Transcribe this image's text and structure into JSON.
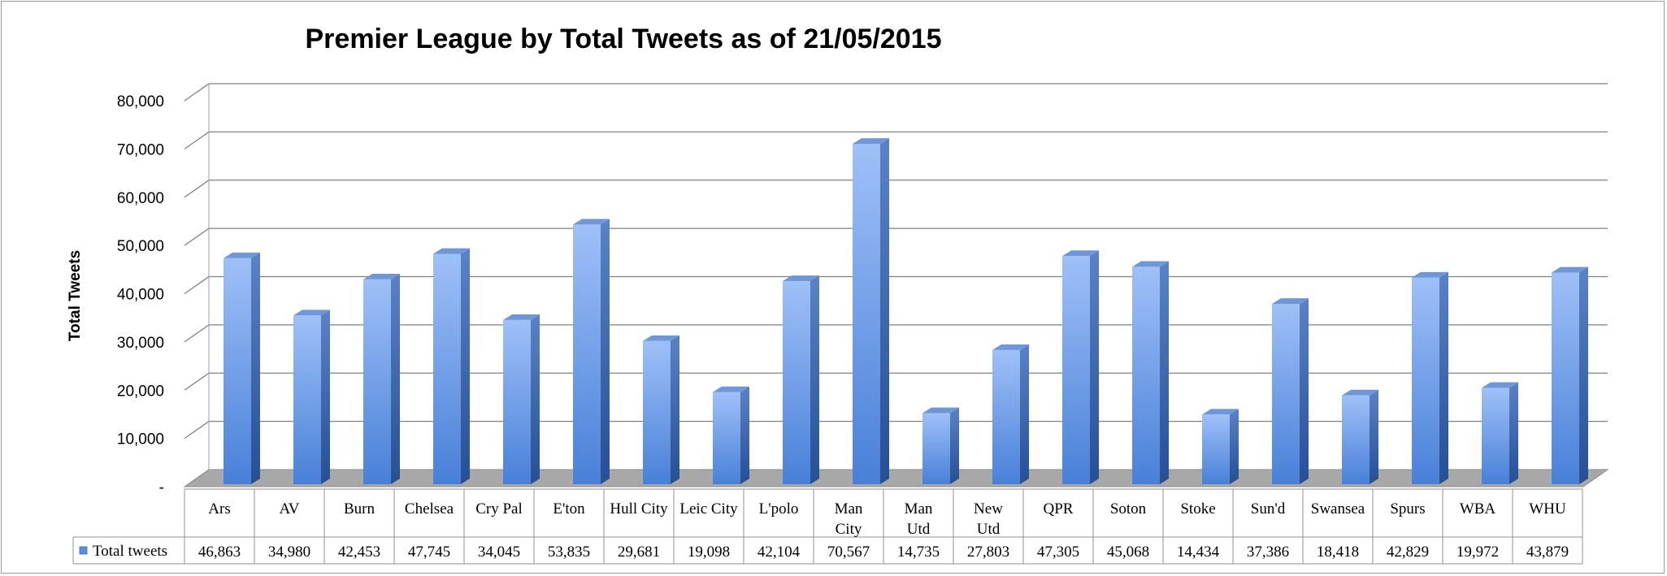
{
  "chart_data": {
    "type": "bar",
    "title": "Premier League by Total Tweets as of 21/05/2015",
    "ylabel": "Total Tweets",
    "xlabel": "",
    "ylim": [
      0,
      80000
    ],
    "yticks": [
      "-",
      "10,000",
      "20,000",
      "30,000",
      "40,000",
      "50,000",
      "60,000",
      "70,000",
      "80,000"
    ],
    "grid": true,
    "legend": "data-table",
    "categories": [
      "Ars",
      "AV",
      "Burn",
      "Chelsea",
      "Cry Pal",
      "E'ton",
      "Hull City",
      "Leic City",
      "L'polo",
      "Man City",
      "Man Utd",
      "New Utd",
      "QPR",
      "Soton",
      "Stoke",
      "Sun'd",
      "Swansea",
      "Spurs",
      "WBA",
      "WHU"
    ],
    "series": [
      {
        "name": "Total tweets",
        "values": [
          46863,
          34980,
          42453,
          47745,
          34045,
          53835,
          29681,
          19098,
          42104,
          70567,
          14735,
          27803,
          47305,
          45068,
          14434,
          37386,
          18418,
          42829,
          19972,
          43879
        ],
        "labels": [
          "46,863",
          "34,980",
          "42,453",
          "47,745",
          "34,045",
          "53,835",
          "29,681",
          "19,098",
          "42,104",
          "70,567",
          "14,735",
          "27,803",
          "47,305",
          "45,068",
          "14,434",
          "37,386",
          "18,418",
          "42,829",
          "19,972",
          "43,879"
        ]
      }
    ],
    "colors": {
      "bar_front_top": "#9fc0f8",
      "bar_front_bottom": "#4880d8",
      "bar_side": "#2e5ba4",
      "bar_top": "#6f97d8",
      "floor": "#a8a8a8",
      "grid": "#808080"
    }
  }
}
